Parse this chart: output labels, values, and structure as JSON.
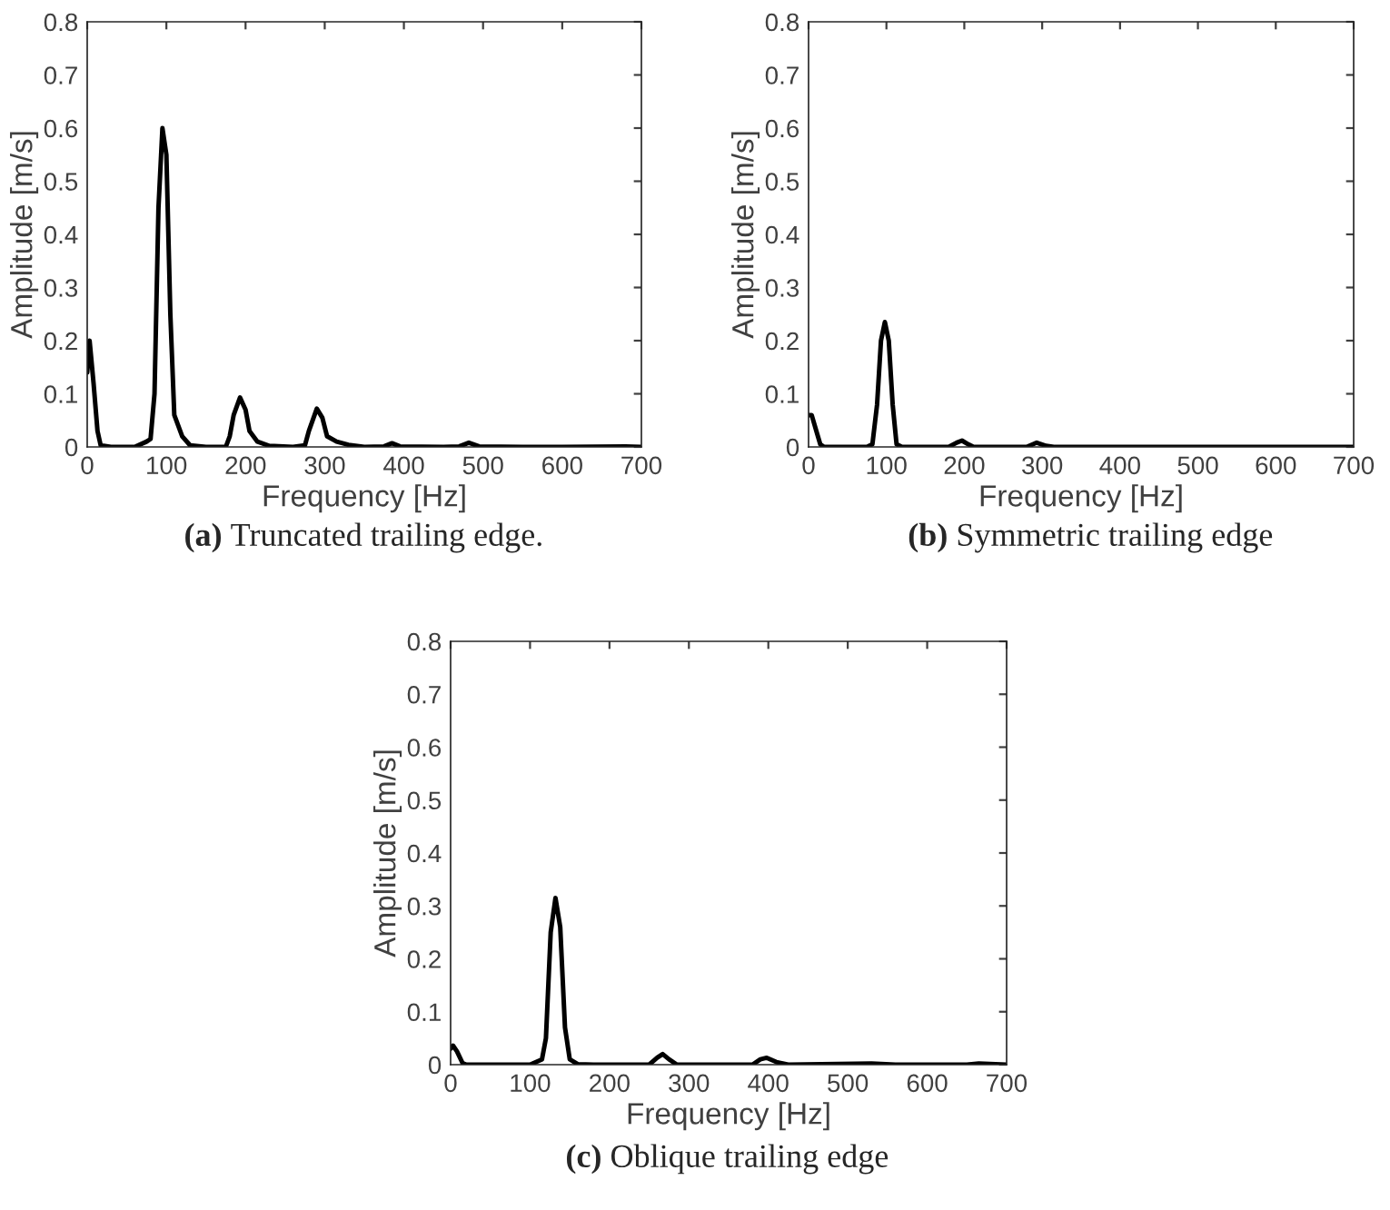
{
  "chart_data": [
    {
      "type": "line",
      "xlabel": "Frequency [Hz]",
      "ylabel": "Amplitude [m/s]",
      "annotations": [
        "(a) Truncated trailing edge."
      ],
      "xlim": [
        0,
        700
      ],
      "ylim": [
        0,
        0.8
      ],
      "xticks": [
        0,
        100,
        200,
        300,
        400,
        500,
        600,
        700
      ],
      "yticks": [
        0,
        0.1,
        0.2,
        0.3,
        0.4,
        0.5,
        0.6,
        0.7,
        0.8
      ],
      "grid": false,
      "legend": false,
      "series": [
        {
          "color": "#000000",
          "x": [
            0,
            3,
            8,
            13,
            17,
            30,
            60,
            75,
            80,
            85,
            90,
            95,
            100,
            105,
            110,
            120,
            130,
            150,
            175,
            180,
            185,
            193,
            200,
            205,
            215,
            230,
            260,
            275,
            280,
            290,
            297,
            303,
            315,
            330,
            350,
            375,
            385,
            395,
            450,
            470,
            482,
            495,
            550,
            600,
            680,
            700
          ],
          "values": [
            0.14,
            0.2,
            0.12,
            0.03,
            0.003,
            0,
            0,
            0.01,
            0.015,
            0.1,
            0.45,
            0.6,
            0.55,
            0.25,
            0.06,
            0.02,
            0.003,
            0,
            0,
            0.02,
            0.06,
            0.093,
            0.07,
            0.03,
            0.01,
            0.002,
            0,
            0.003,
            0.03,
            0.072,
            0.055,
            0.02,
            0.01,
            0.004,
            0,
            0.001,
            0.007,
            0.001,
            0,
            0.001,
            0.008,
            0.001,
            0,
            0,
            0.001,
            0
          ]
        }
      ]
    },
    {
      "type": "line",
      "xlabel": "Frequency [Hz]",
      "ylabel": "Amplitude [m/s]",
      "annotations": [
        "(b) Symmetric trailing edge"
      ],
      "xlim": [
        0,
        700
      ],
      "ylim": [
        0,
        0.8
      ],
      "xticks": [
        0,
        100,
        200,
        300,
        400,
        500,
        600,
        700
      ],
      "yticks": [
        0,
        0.1,
        0.2,
        0.3,
        0.4,
        0.5,
        0.6,
        0.7,
        0.8
      ],
      "grid": false,
      "legend": false,
      "series": [
        {
          "color": "#000000",
          "x": [
            0,
            4,
            10,
            15,
            20,
            75,
            82,
            88,
            93,
            98,
            103,
            108,
            113,
            120,
            180,
            190,
            197,
            205,
            212,
            280,
            293,
            305,
            315,
            700
          ],
          "values": [
            0.06,
            0.06,
            0.03,
            0.005,
            0,
            0,
            0.005,
            0.08,
            0.2,
            0.235,
            0.2,
            0.08,
            0.005,
            0,
            0,
            0.008,
            0.012,
            0.005,
            0,
            0,
            0.008,
            0.002,
            0,
            0
          ]
        }
      ]
    },
    {
      "type": "line",
      "xlabel": "Frequency [Hz]",
      "ylabel": "Amplitude [m/s]",
      "annotations": [
        "(c) Oblique trailing edge"
      ],
      "xlim": [
        0,
        700
      ],
      "ylim": [
        0,
        0.8
      ],
      "xticks": [
        0,
        100,
        200,
        300,
        400,
        500,
        600,
        700
      ],
      "yticks": [
        0,
        0.1,
        0.2,
        0.3,
        0.4,
        0.5,
        0.6,
        0.7,
        0.8
      ],
      "grid": false,
      "legend": false,
      "series": [
        {
          "color": "#000000",
          "x": [
            0,
            3,
            8,
            15,
            20,
            100,
            115,
            120,
            126,
            132,
            138,
            144,
            150,
            160,
            180,
            250,
            260,
            267,
            275,
            285,
            380,
            390,
            398,
            410,
            425,
            530,
            560,
            650,
            665,
            700
          ],
          "values": [
            0.03,
            0.036,
            0.025,
            0.003,
            0,
            0,
            0.01,
            0.05,
            0.25,
            0.315,
            0.26,
            0.07,
            0.01,
            0.001,
            0,
            0,
            0.013,
            0.02,
            0.01,
            0,
            0,
            0.01,
            0.013,
            0.005,
            0,
            0.002,
            0,
            0,
            0.002,
            0
          ]
        }
      ]
    }
  ]
}
